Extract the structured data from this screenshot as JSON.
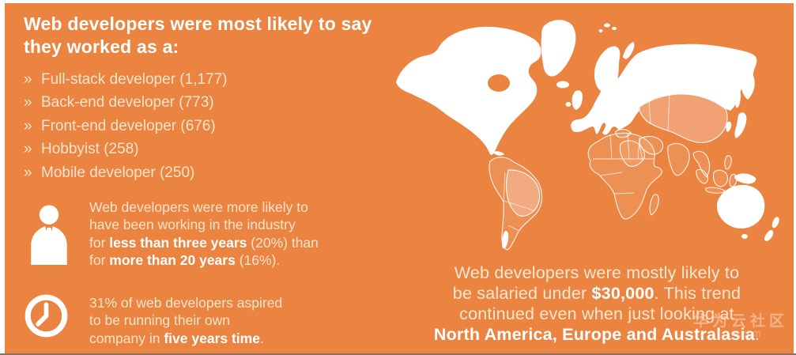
{
  "theme": {
    "background_color": "#EA8440",
    "frame_color": "#FFFFFF",
    "title_color": "#FFFFFF",
    "body_text_color": "#F8E4CC",
    "bold_text_color": "#FFFFFF",
    "map_land_color": "#FFFFFF",
    "map_tint_color": "#F1A173"
  },
  "left_column": {
    "title": "Web developers were most likely to say\nthey worked as a:",
    "bullet_char": "»",
    "roles": [
      {
        "text": "Full-stack developer (1,177)"
      },
      {
        "text": "Back-end developer (773)"
      },
      {
        "text": "Front-end developer (676)"
      },
      {
        "text": "Hobbyist (258)"
      },
      {
        "text": "Mobile developer (250)"
      }
    ],
    "facts": [
      {
        "icon": "person-icon",
        "segments": [
          {
            "t": "Web developers were more likely to\nhave been working in the industry\nfor ",
            "b": false
          },
          {
            "t": "less than three years",
            "b": true
          },
          {
            "t": " (20%) than\nfor ",
            "b": false
          },
          {
            "t": "more than 20 years",
            "b": true
          },
          {
            "t": " (16%).",
            "b": false
          }
        ]
      },
      {
        "icon": "clock-icon",
        "segments": [
          {
            "t": "31% of web developers aspired\nto be running their own\ncompany in ",
            "b": false
          },
          {
            "t": "five years time",
            "b": true
          },
          {
            "t": ".",
            "b": false
          }
        ]
      }
    ]
  },
  "map": {
    "name": "world-map",
    "solid_regions": [
      "North America",
      "Greenland",
      "Europe",
      "Scandinavia",
      "Russia",
      "Japan",
      "Australia",
      "New Guinea",
      "New Zealand"
    ],
    "outlined_regions": [
      "South America",
      "Africa",
      "Middle East",
      "India",
      "Southeast Asia",
      "Indonesia",
      "Philippines"
    ],
    "tinted_regions": [
      "Brazil",
      "Kazakhstan",
      "Mongolia",
      "China"
    ]
  },
  "caption": {
    "segments": [
      {
        "t": "Web developers were mostly likely to\nbe salaried under ",
        "b": false
      },
      {
        "t": "$30,000",
        "b": true
      },
      {
        "t": ". This trend\ncontinued even when just looking at\n",
        "b": false
      },
      {
        "t": "North America, Europe and Australasia",
        "b": true
      },
      {
        "t": ".",
        "b": false
      }
    ]
  },
  "watermark": {
    "line1": "华为云社区",
    "line2": "s.com"
  }
}
